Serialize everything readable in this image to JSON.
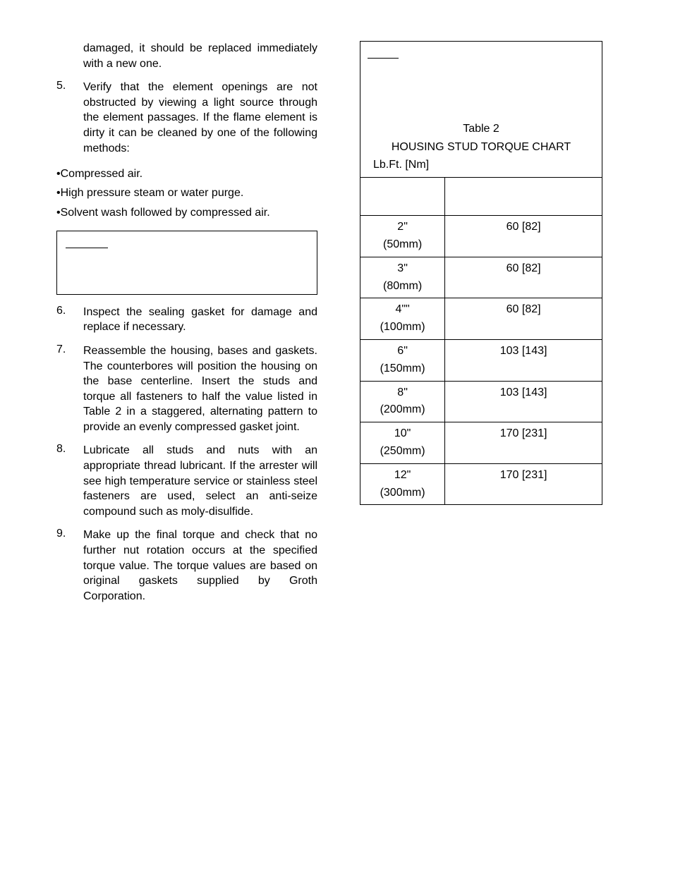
{
  "left": {
    "intro_continuation": "damaged, it should be replaced immediately with a new one.",
    "items": [
      {
        "num": "5.",
        "text": "Verify that the element openings are not obstructed by viewing a light source through the element passages. If the flame element is dirty it can be cleaned by one of the following methods:"
      },
      {
        "num": "6.",
        "text": "Inspect the sealing gasket for damage and replace if necessary."
      },
      {
        "num": "7.",
        "text": "Reassemble the housing, bases and gaskets. The counterbores will position the housing on the base centerline. Insert the studs and torque all fasteners to half the value listed in Table 2 in a staggered, alternating pattern to provide an evenly compressed gasket joint."
      },
      {
        "num": "8.",
        "text": "Lubricate all studs and nuts with an appropriate thread lubricant. If the arrester will see high temperature service or stainless steel fasteners are used, select an anti-seize compound such as moly-disulfide."
      },
      {
        "num": "9.",
        "text": "Make up the final torque and check that no further nut rotation occurs at the specified torque value. The torque values are based on original gaskets supplied by Groth Corporation."
      }
    ],
    "bullets": [
      "Compressed air.",
      "High pressure steam or water purge.",
      "Solvent wash followed by compressed air."
    ]
  },
  "right": {
    "table_label": "Table 2",
    "table_title": "HOUSING STUD TORQUE CHART",
    "table_units": "Lb.Ft. [Nm]",
    "rows": [
      {
        "size_in": "2\"",
        "size_mm": "(50mm)",
        "torque": "60 [82]"
      },
      {
        "size_in": "3\"",
        "size_mm": "(80mm)",
        "torque": "60 [82]"
      },
      {
        "size_in": "4\"\"",
        "size_mm": "(100mm)",
        "torque": "60 [82]"
      },
      {
        "size_in": "6\"",
        "size_mm": "(150mm)",
        "torque": "103 [143]"
      },
      {
        "size_in": "8\"",
        "size_mm": "(200mm)",
        "torque": "103 [143]"
      },
      {
        "size_in": "10\"",
        "size_mm": "(250mm)",
        "torque": "170 [231]"
      },
      {
        "size_in": "12\"",
        "size_mm": "(300mm)",
        "torque": "170 [231]"
      }
    ]
  }
}
